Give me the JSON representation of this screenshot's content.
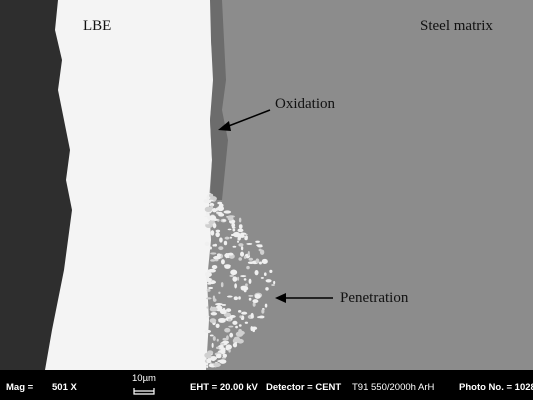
{
  "labels": {
    "lbe": "LBE",
    "steel": "Steel matrix",
    "oxidation": "Oxidation",
    "penetration": "Penetration"
  },
  "info_bar": {
    "mag_label": "Mag =",
    "mag_value": "501 X",
    "scale": "10µm",
    "eht": "EHT = 20.00 kV",
    "detector": "Detector = CENT",
    "sample": "T91 550/2000h ArH",
    "photo": "Photo No. = 1028"
  }
}
